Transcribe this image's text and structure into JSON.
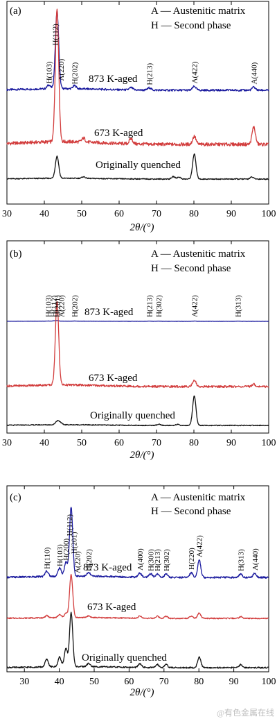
{
  "x_axis_label": "2θ/(°)",
  "watermark": "@有色金属在线",
  "colors": {
    "aged873": "#1a1a9e",
    "aged673": "#d23c3c",
    "quenched": "#111111",
    "axis": "#000000"
  },
  "chart_data": [
    {
      "type": "line",
      "panel": "(a)",
      "legend": [
        "A — Austenitic matrix",
        "H — Second phase"
      ],
      "xlim": [
        30,
        100
      ],
      "xticks": [
        30,
        40,
        50,
        60,
        70,
        80,
        90,
        100
      ],
      "series": [
        {
          "name": "873 K-aged",
          "color": "#1a1a9e",
          "peaks": [
            [
              43.4,
              1.0
            ],
            [
              41.2,
              0.05
            ],
            [
              48.1,
              0.04
            ],
            [
              63.2,
              0.03
            ],
            [
              68.1,
              0.03
            ],
            [
              80.1,
              0.05
            ],
            [
              96.0,
              0.04
            ]
          ]
        },
        {
          "name": "673 K-aged",
          "color": "#d23c3c",
          "peaks": [
            [
              43.4,
              1.0
            ],
            [
              50.5,
              0.03
            ],
            [
              63.2,
              0.04
            ],
            [
              80.1,
              0.06
            ],
            [
              96.0,
              0.13
            ]
          ]
        },
        {
          "name": "Originally quenched",
          "color": "#111111",
          "peaks": [
            [
              43.4,
              0.55
            ],
            [
              50.5,
              0.04
            ],
            [
              74.5,
              0.06
            ],
            [
              76.0,
              0.05
            ],
            [
              80.1,
              0.62
            ],
            [
              95.5,
              0.05
            ]
          ]
        }
      ],
      "annotations": [
        {
          "text": "H(103)",
          "x": 41.2
        },
        {
          "text": "H(112)",
          "x": 42.9
        },
        {
          "text": "A(220)",
          "x": 44.4
        },
        {
          "text": "H(202)",
          "x": 48.1
        },
        {
          "text": "H(213)",
          "x": 68.1
        },
        {
          "text": "A(422)",
          "x": 80.1
        },
        {
          "text": "A(440)",
          "x": 96.0
        }
      ]
    },
    {
      "type": "line",
      "panel": "(b)",
      "legend": [
        "A — Austenitic matrix",
        "H — Second phase"
      ],
      "xlim": [
        30,
        100
      ],
      "xticks": [
        30,
        40,
        50,
        60,
        70,
        80,
        90,
        100
      ],
      "series": [
        {
          "name": "873 K-aged",
          "color": "#1a1a9e",
          "peaks": [
            [
              43.4,
              0.08
            ],
            [
              41.0,
              0.03
            ],
            [
              42.5,
              0.04
            ],
            [
              48.1,
              0.03
            ],
            [
              68.1,
              0.03
            ],
            [
              70.6,
              0.03
            ],
            [
              80.1,
              0.04
            ],
            [
              91.8,
              0.03
            ]
          ]
        },
        {
          "name": "673 K-aged",
          "color": "#d23c3c",
          "peaks": [
            [
              43.4,
              1.0
            ],
            [
              80.1,
              0.08
            ],
            [
              96.0,
              0.03
            ]
          ]
        },
        {
          "name": "Originally quenched",
          "color": "#111111",
          "peaks": [
            [
              43.4,
              0.1
            ],
            [
              44.2,
              0.07
            ],
            [
              70.6,
              0.03
            ],
            [
              75.5,
              0.03
            ],
            [
              80.1,
              0.85
            ]
          ]
        }
      ],
      "annotations": [
        {
          "text": "H(103)",
          "x": 41.0
        },
        {
          "text": "H(112)",
          "x": 42.5
        },
        {
          "text": "H(201)",
          "x": 43.4
        },
        {
          "text": "A(220)",
          "x": 44.5
        },
        {
          "text": "H(202)",
          "x": 48.1
        },
        {
          "text": "H(213)",
          "x": 68.1
        },
        {
          "text": "H(302)",
          "x": 70.6
        },
        {
          "text": "A(422)",
          "x": 80.1
        },
        {
          "text": "H(313)",
          "x": 91.8
        }
      ]
    },
    {
      "type": "line",
      "panel": "(c)",
      "legend": [
        "A — Austenitic matrix",
        "H — Second phase"
      ],
      "xlim": [
        25,
        100
      ],
      "xticks": [
        30,
        40,
        50,
        60,
        70,
        80,
        90,
        100
      ],
      "series": [
        {
          "name": "873 K-aged",
          "color": "#1a1a9e",
          "peaks": [
            [
              36.4,
              0.08
            ],
            [
              40.1,
              0.12
            ],
            [
              41.9,
              0.2
            ],
            [
              43.4,
              1.0
            ],
            [
              48.4,
              0.05
            ],
            [
              63.1,
              0.06
            ],
            [
              66.2,
              0.05
            ],
            [
              68.1,
              0.05
            ],
            [
              70.6,
              0.05
            ],
            [
              77.8,
              0.07
            ],
            [
              80.1,
              0.25
            ],
            [
              92.0,
              0.05
            ],
            [
              96.0,
              0.06
            ]
          ]
        },
        {
          "name": "673 K-aged",
          "color": "#d23c3c",
          "peaks": [
            [
              36.4,
              0.05
            ],
            [
              40.1,
              0.07
            ],
            [
              41.9,
              0.1
            ],
            [
              43.4,
              1.0
            ],
            [
              48.4,
              0.04
            ],
            [
              63.1,
              0.05
            ],
            [
              68.1,
              0.05
            ],
            [
              70.6,
              0.05
            ],
            [
              77.8,
              0.05
            ],
            [
              80.1,
              0.12
            ],
            [
              92.0,
              0.04
            ]
          ]
        },
        {
          "name": "Originally quenched",
          "color": "#111111",
          "peaks": [
            [
              36.4,
              0.14
            ],
            [
              40.1,
              0.18
            ],
            [
              41.9,
              0.33
            ],
            [
              43.4,
              1.0
            ],
            [
              48.4,
              0.06
            ],
            [
              63.1,
              0.07
            ],
            [
              68.1,
              0.06
            ],
            [
              70.6,
              0.06
            ],
            [
              80.1,
              0.2
            ],
            [
              92.0,
              0.06
            ]
          ]
        }
      ],
      "annotations": [
        {
          "text": "H(110)",
          "x": 36.4
        },
        {
          "text": "H(103)",
          "x": 40.1
        },
        {
          "text": "H(200)",
          "x": 41.9
        },
        {
          "text": "H(112)",
          "x": 42.9
        },
        {
          "text": "H(201)",
          "x": 44.1
        },
        {
          "text": "A(220)",
          "x": 45.1
        },
        {
          "text": "H(202)",
          "x": 48.4
        },
        {
          "text": "A(400)",
          "x": 63.1
        },
        {
          "text": "H(300)",
          "x": 66.2
        },
        {
          "text": "H(213)",
          "x": 68.1
        },
        {
          "text": "H(302)",
          "x": 70.6
        },
        {
          "text": "H(220)",
          "x": 77.8
        },
        {
          "text": "A(422)",
          "x": 80.1
        },
        {
          "text": "H(313)",
          "x": 92.0
        },
        {
          "text": "A(440)",
          "x": 96.0
        }
      ]
    }
  ]
}
